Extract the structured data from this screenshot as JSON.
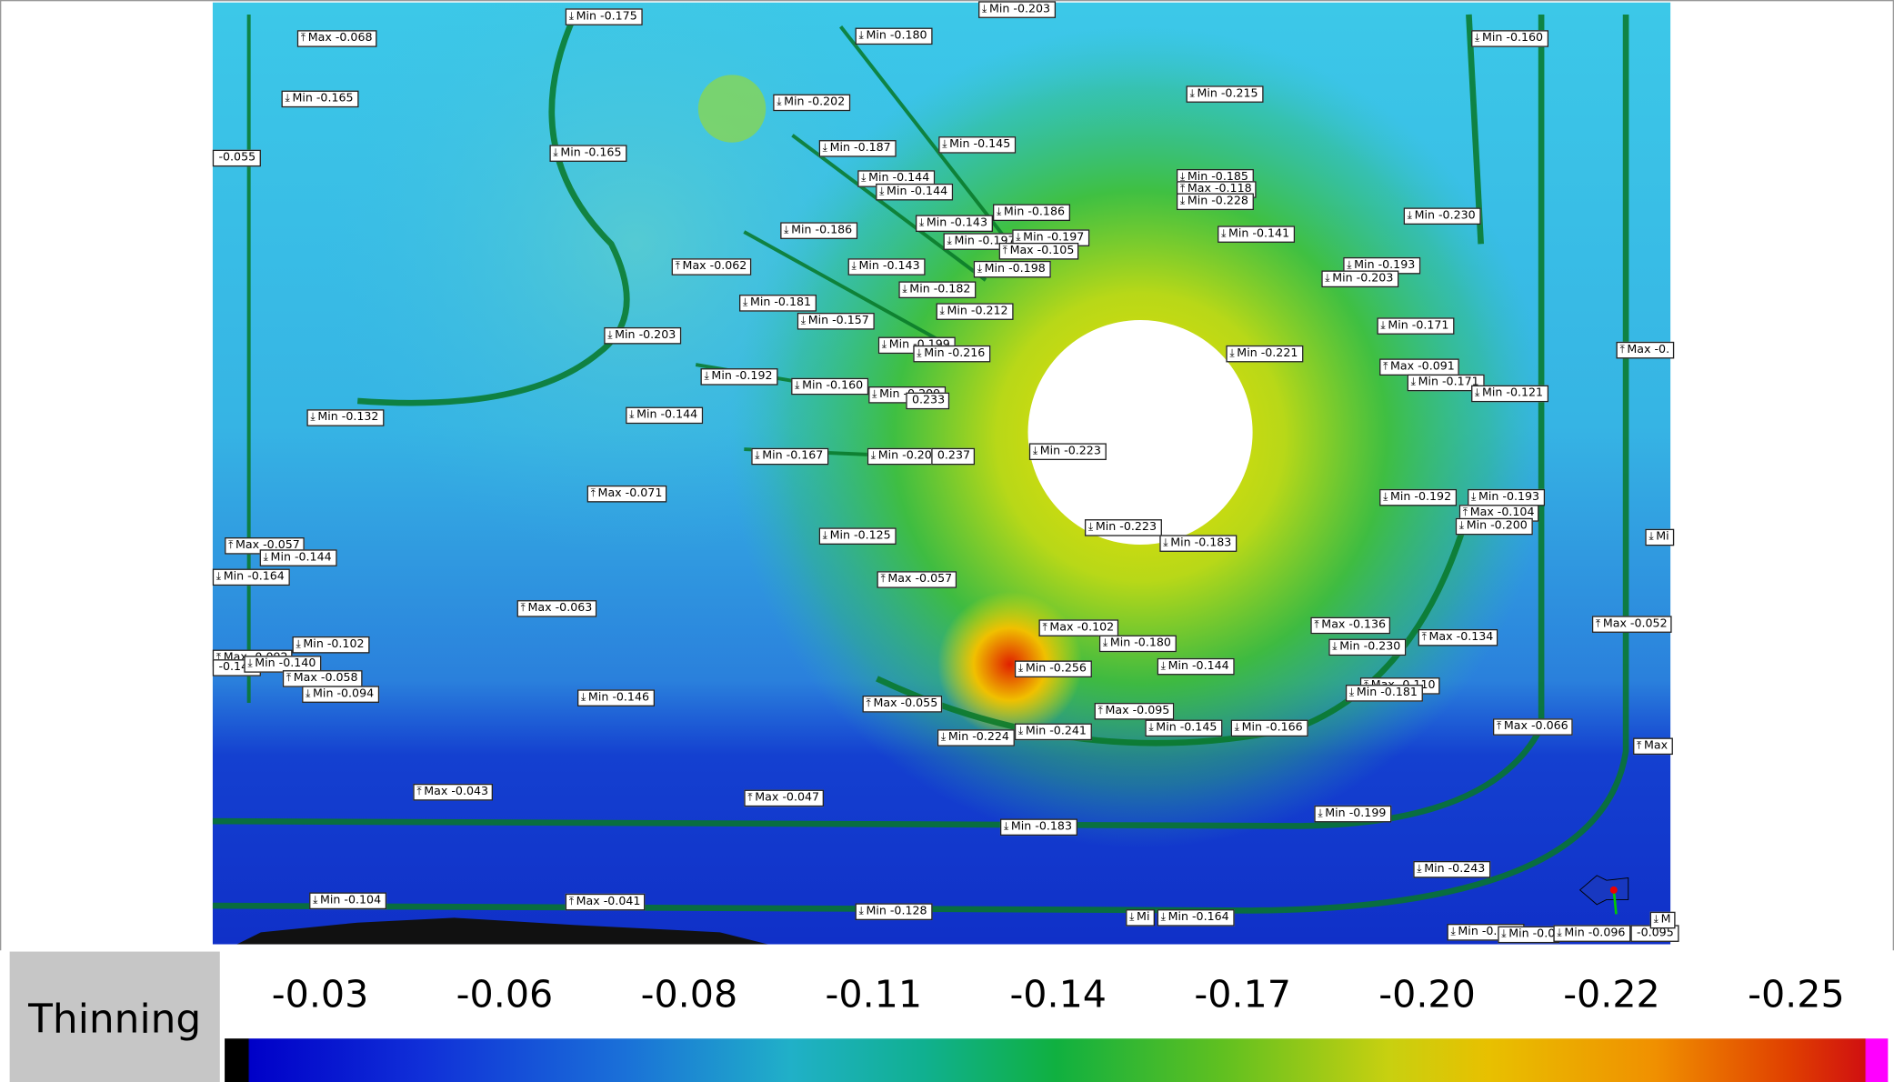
{
  "labels": [
    "Min -0.175",
    "Max -0.068",
    "Min -0.203",
    "Min -0.180",
    "Min -0.160",
    "Min -0.165",
    "Min -0.202",
    "Min -0.215",
    "-0.055",
    "Min -0.165",
    "Min -0.187",
    "Min -0.145",
    "Min -0.144",
    "Min -0.144",
    "Min -0.185",
    "Max -0.118",
    "Min -0.228",
    "Min -0.186",
    "Min -0.143",
    "Min -0.186",
    "Min -0.141",
    "Min -0.230",
    "Min -0.197",
    "Min -0.197",
    "Max -0.105",
    "Max -0.062",
    "Min -0.143",
    "Min -0.198",
    "Min -0.193",
    "Min -0.203",
    "Min -0.182",
    "Min -0.181",
    "Min -0.212",
    "Min -0.157",
    "Min -0.203",
    "Min -0.171",
    "Min -0.199",
    "Min -0.216",
    "Min -0.221",
    "Max -0.",
    "Max -0.091",
    "Min -0.192",
    "Min -0.160",
    "Min -0.171",
    "Min -0.121",
    "Min -0.209",
    "0.233",
    "Min -0.132",
    "Min -0.144",
    "Min -0.223",
    "Min -0.167",
    "Min -0.208",
    "0.237",
    "Max -0.071",
    "Min -0.192",
    "Min -0.193",
    "Max -0.104",
    "Min -0.200",
    "Min -0.223",
    "Min -0.183",
    "Min -0.125",
    "Mi",
    "Max -0.057",
    "Min -0.144",
    "Min -0.164",
    "Max -0.057",
    "Max -0.063",
    "Max -0.102",
    "Max -0.136",
    "Max -0.134",
    "Max -0.052",
    "Min -0.180",
    "Min -0.230",
    "Min -0.102",
    "Max -0.092",
    "-0.144",
    "Min -0.140",
    "Max -0.058",
    "Min -0.094",
    "Min -0.256",
    "Min -0.144",
    "Min -0.146",
    "Max -0.055",
    "Max -0.095",
    "Max -0.110",
    "Min -0.181",
    "Min -0.224",
    "Min -0.241",
    "Min -0.145",
    "Min -0.166",
    "Max -0.066",
    "Max",
    "Max -0.043",
    "Max -0.047",
    "Min -0.199",
    "Min -0.183",
    "Min -0.243",
    "Min -0.104",
    "Max -0.041",
    "Min -0.128",
    "Mi",
    "Min -0.164",
    "Min -0.108",
    "Min -0.0",
    "Min -0.096",
    "-0.095",
    "M"
  ],
  "legend": {
    "title": "Thinning",
    "ticks": [
      "-0.03",
      "-0.06",
      "-0.08",
      "-0.11",
      "-0.14",
      "-0.17",
      "-0.20",
      "-0.22",
      "-0.25"
    ]
  }
}
